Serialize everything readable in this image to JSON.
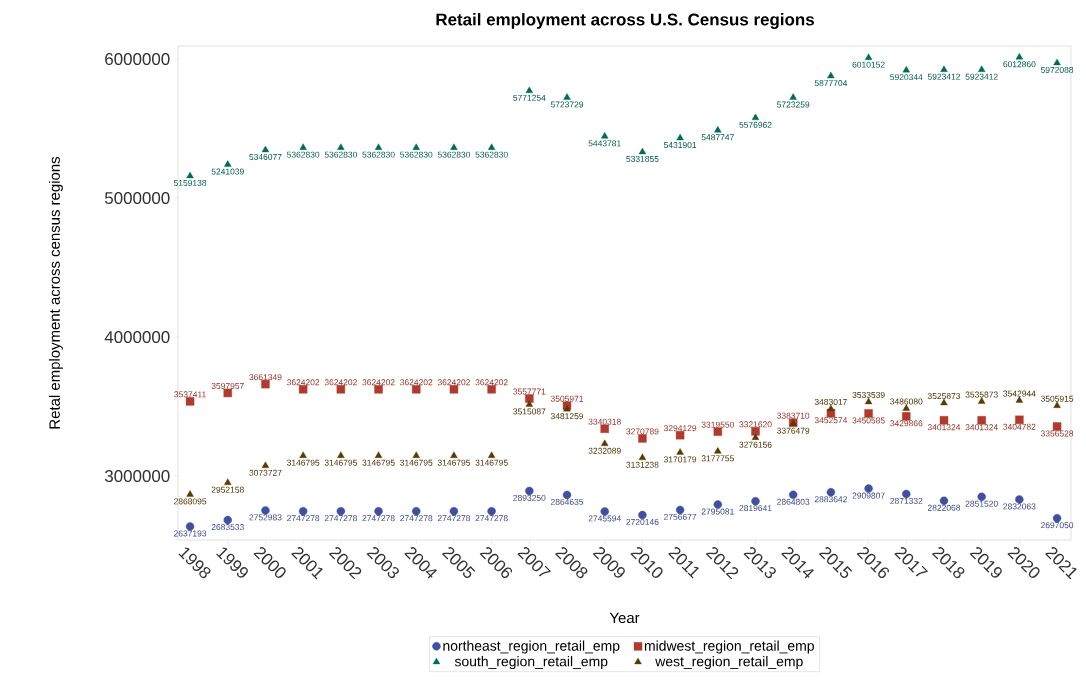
{
  "chart_data": {
    "type": "scatter",
    "title": "Retail employment across U.S. Census regions",
    "xlabel": "Year",
    "ylabel": "Retal employment across census regions",
    "categories": [
      "1998",
      "1999",
      "2000",
      "2001",
      "2002",
      "2003",
      "2004",
      "2005",
      "2006",
      "2007",
      "2008",
      "2009",
      "2010",
      "2011",
      "2012",
      "2013",
      "2014",
      "2015",
      "2016",
      "2017",
      "2018",
      "2019",
      "2020",
      "2021"
    ],
    "series": [
      {
        "name": "northeast_region_retail_emp",
        "color": "#4050a0",
        "marker": "circle",
        "values": [
          2637193,
          2683533,
          2752983,
          2747278,
          2747278,
          2747278,
          2747278,
          2747278,
          2747278,
          2893250,
          2864635,
          2745594,
          2720146,
          2756677,
          2795081,
          2819641,
          2864803,
          2883642,
          2909807,
          2871332,
          2822068,
          2851520,
          2832063,
          2697050
        ]
      },
      {
        "name": "midwest_region_retail_emp",
        "color": "#b03a2e",
        "marker": "square",
        "values": [
          3537411,
          3597957,
          3661349,
          3624202,
          3624202,
          3624202,
          3624202,
          3624202,
          3624202,
          3557771,
          3505971,
          3340318,
          3270789,
          3294129,
          3319550,
          3321620,
          3383710,
          3452574,
          3450585,
          3429866,
          3401324,
          3401324,
          3404782,
          3356528
        ]
      },
      {
        "name": "south_region_retail_emp",
        "color": "#006b5a",
        "marker": "triangle",
        "values": [
          5159138,
          5241039,
          5346077,
          5362830,
          5362830,
          5362830,
          5362830,
          5362830,
          5362830,
          5771254,
          5723729,
          5443781,
          5331855,
          5431901,
          5487747,
          5576962,
          5723259,
          5877704,
          6010152,
          5920344,
          5923412,
          5923412,
          6012860,
          5972088
        ]
      },
      {
        "name": "west_region_retail_emp",
        "color": "#5a3a00",
        "marker": "triangle",
        "values": [
          2868095,
          2952158,
          3073727,
          3146795,
          3146795,
          3146795,
          3146795,
          3146795,
          3146795,
          3515087,
          3481259,
          3232089,
          3131238,
          3170179,
          3177755,
          3276156,
          3376479,
          3483017,
          3533539,
          3486080,
          3525873,
          3535873,
          3542944,
          3505915
        ]
      }
    ],
    "ylim": [
      2540000,
      6094000
    ],
    "yticks": [
      3000000,
      4000000,
      5000000,
      6000000
    ],
    "data_labels": true,
    "grid": false,
    "legend": "bottom"
  }
}
